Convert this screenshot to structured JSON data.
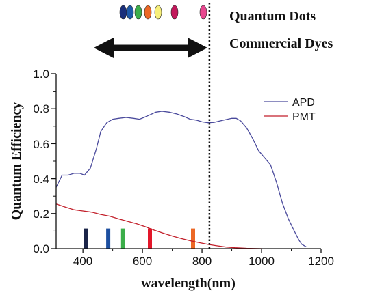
{
  "chart_data": {
    "type": "line",
    "xlabel": "wavelength(nm)",
    "ylabel": "Quantum Efficiency",
    "xlim": [
      310,
      1200
    ],
    "ylim": [
      0,
      1.0
    ],
    "xticks": [
      400,
      600,
      800,
      1000,
      1200
    ],
    "yticks": [
      0.0,
      0.2,
      0.4,
      0.6,
      0.8,
      1.0
    ],
    "x_tick_labels": [
      "400",
      "600",
      "800",
      "1000",
      "1200"
    ],
    "y_tick_labels": [
      "0.0",
      "0.2",
      "0.4",
      "0.6",
      "0.8",
      "1.0"
    ],
    "grid": false,
    "legend_position": "top-right",
    "series": [
      {
        "name": "APD",
        "color": "#4a4a9c",
        "points": [
          [
            310,
            0.35
          ],
          [
            330,
            0.42
          ],
          [
            350,
            0.42
          ],
          [
            370,
            0.43
          ],
          [
            390,
            0.43
          ],
          [
            405,
            0.42
          ],
          [
            425,
            0.46
          ],
          [
            445,
            0.57
          ],
          [
            460,
            0.67
          ],
          [
            480,
            0.72
          ],
          [
            500,
            0.74
          ],
          [
            520,
            0.745
          ],
          [
            545,
            0.75
          ],
          [
            570,
            0.745
          ],
          [
            590,
            0.74
          ],
          [
            605,
            0.75
          ],
          [
            625,
            0.765
          ],
          [
            645,
            0.78
          ],
          [
            665,
            0.785
          ],
          [
            690,
            0.78
          ],
          [
            715,
            0.77
          ],
          [
            740,
            0.755
          ],
          [
            760,
            0.74
          ],
          [
            780,
            0.735
          ],
          [
            800,
            0.725
          ],
          [
            820,
            0.72
          ],
          [
            840,
            0.722
          ],
          [
            860,
            0.73
          ],
          [
            880,
            0.738
          ],
          [
            900,
            0.745
          ],
          [
            915,
            0.745
          ],
          [
            930,
            0.73
          ],
          [
            950,
            0.69
          ],
          [
            970,
            0.63
          ],
          [
            990,
            0.56
          ],
          [
            1010,
            0.52
          ],
          [
            1030,
            0.48
          ],
          [
            1050,
            0.38
          ],
          [
            1070,
            0.26
          ],
          [
            1090,
            0.17
          ],
          [
            1110,
            0.1
          ],
          [
            1125,
            0.05
          ],
          [
            1135,
            0.025
          ],
          [
            1150,
            0.01
          ]
        ]
      },
      {
        "name": "PMT",
        "color": "#c21f2a",
        "points": [
          [
            310,
            0.255
          ],
          [
            340,
            0.238
          ],
          [
            370,
            0.222
          ],
          [
            400,
            0.215
          ],
          [
            430,
            0.208
          ],
          [
            460,
            0.195
          ],
          [
            490,
            0.185
          ],
          [
            520,
            0.17
          ],
          [
            550,
            0.156
          ],
          [
            580,
            0.142
          ],
          [
            610,
            0.125
          ],
          [
            640,
            0.105
          ],
          [
            670,
            0.088
          ],
          [
            700,
            0.072
          ],
          [
            730,
            0.058
          ],
          [
            760,
            0.045
          ],
          [
            790,
            0.034
          ],
          [
            820,
            0.024
          ],
          [
            850,
            0.016
          ],
          [
            880,
            0.009
          ],
          [
            910,
            0.005
          ],
          [
            950,
            0.002
          ],
          [
            1000,
            0.0
          ]
        ]
      }
    ],
    "dye_markers": {
      "height": 0.115,
      "items": [
        {
          "wavelength": 410,
          "color": "#1a2448"
        },
        {
          "wavelength": 485,
          "color": "#1d4fa0"
        },
        {
          "wavelength": 535,
          "color": "#3cae4a"
        },
        {
          "wavelength": 625,
          "color": "#e3172a"
        },
        {
          "wavelength": 770,
          "color": "#ec6825"
        }
      ]
    },
    "cutoff_line": {
      "wavelength": 825
    }
  },
  "legend": {
    "entries": [
      "APD",
      "PMT"
    ]
  },
  "annotations": {
    "quantum_dots": "Quantum Dots",
    "commercial_dyes": "Commercial Dyes",
    "dot_colors": [
      "#1a2f7a",
      "#1e5aa8",
      "#3cae4a",
      "#ec6825",
      "#f7ef7a",
      "#c2185b",
      "#e8468f"
    ]
  }
}
